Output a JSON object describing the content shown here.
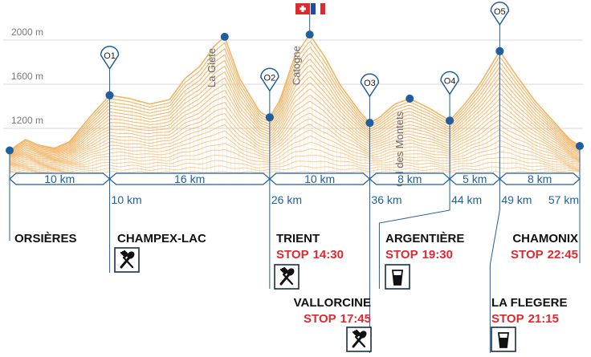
{
  "chart_data": {
    "type": "area",
    "x_unit": "km",
    "y_unit": "m",
    "y_ticks": [
      "1200 m",
      "1600 m",
      "2000 m"
    ],
    "y_tick_values": [
      1200,
      1600,
      2000
    ],
    "ylim": [
      950,
      2200
    ],
    "xlim": [
      0,
      57
    ],
    "grid": true,
    "profile": [
      {
        "x": 0,
        "y": 1000
      },
      {
        "x": 1.6,
        "y": 1100
      },
      {
        "x": 2.8,
        "y": 1050
      },
      {
        "x": 4.5,
        "y": 1020
      },
      {
        "x": 6,
        "y": 1080
      },
      {
        "x": 8,
        "y": 1300
      },
      {
        "x": 10,
        "y": 1500
      },
      {
        "x": 12,
        "y": 1470
      },
      {
        "x": 14,
        "y": 1420
      },
      {
        "x": 16,
        "y": 1460
      },
      {
        "x": 17.5,
        "y": 1650
      },
      {
        "x": 19,
        "y": 1760
      },
      {
        "x": 20.5,
        "y": 1950
      },
      {
        "x": 21.5,
        "y": 2030
      },
      {
        "x": 23,
        "y": 1650
      },
      {
        "x": 25,
        "y": 1350
      },
      {
        "x": 26,
        "y": 1300
      },
      {
        "x": 27,
        "y": 1450
      },
      {
        "x": 28.5,
        "y": 1850
      },
      {
        "x": 30,
        "y": 2050
      },
      {
        "x": 31.5,
        "y": 1850
      },
      {
        "x": 33,
        "y": 1600
      },
      {
        "x": 35,
        "y": 1350
      },
      {
        "x": 36,
        "y": 1250
      },
      {
        "x": 37,
        "y": 1300
      },
      {
        "x": 38.5,
        "y": 1420
      },
      {
        "x": 40,
        "y": 1470
      },
      {
        "x": 42,
        "y": 1380
      },
      {
        "x": 44,
        "y": 1270
      },
      {
        "x": 45.5,
        "y": 1420
      },
      {
        "x": 47,
        "y": 1600
      },
      {
        "x": 49,
        "y": 1900
      },
      {
        "x": 50.5,
        "y": 1700
      },
      {
        "x": 52.5,
        "y": 1450
      },
      {
        "x": 54.5,
        "y": 1250
      },
      {
        "x": 56,
        "y": 1100
      },
      {
        "x": 57,
        "y": 1040
      }
    ],
    "peaks": [
      {
        "name": "La Giète",
        "x": 21.5,
        "y": 2030
      },
      {
        "name": "Catogne",
        "x": 30,
        "y": 2050
      },
      {
        "name": "Col des Montets",
        "x": 40,
        "y": 1470
      }
    ],
    "checkpoints": [
      {
        "id": "O1",
        "x": 10,
        "y": 1500
      },
      {
        "id": "O2",
        "x": 26,
        "y": 1300
      },
      {
        "id": "O3",
        "x": 36,
        "y": 1250
      },
      {
        "id": "O4",
        "x": 44,
        "y": 1270
      },
      {
        "id": "O5",
        "x": 49,
        "y": 1900
      }
    ],
    "segments": [
      {
        "label": "10 km",
        "from": 0,
        "to": 10
      },
      {
        "label": "16 km",
        "from": 10,
        "to": 26
      },
      {
        "label": "10 km",
        "from": 26,
        "to": 36
      },
      {
        "label": "8 km",
        "from": 36,
        "to": 44
      },
      {
        "label": "5 km",
        "from": 44,
        "to": 49
      },
      {
        "label": "8 km",
        "from": 49,
        "to": 57
      }
    ],
    "km_marks": [
      "10 km",
      "26 km",
      "36 km",
      "44 km",
      "49 km",
      "57 km"
    ],
    "km_mark_values": [
      10,
      26,
      36,
      44,
      49,
      57
    ],
    "stations": [
      {
        "name": "ORSIÈRES",
        "km": 0
      },
      {
        "name": "CHAMPEX-LAC",
        "km": 10,
        "icon": "fork-knife-icon"
      },
      {
        "name": "TRIENT",
        "km": 26,
        "stop_label": "STOP",
        "stop_time": "14:30",
        "icon": "fork-knife-icon"
      },
      {
        "name": "VALLORCINE",
        "km": 36,
        "stop_label": "STOP",
        "stop_time": "17:45",
        "icon": "fork-knife-icon"
      },
      {
        "name": "ARGENTIÈRE",
        "km": 44,
        "stop_label": "STOP",
        "stop_time": "19:30",
        "icon": "cup-icon"
      },
      {
        "name": "LA FLEGERE",
        "km": 49,
        "stop_label": "STOP",
        "stop_time": "21:15",
        "icon": "cup-icon"
      },
      {
        "name": "CHAMONIX",
        "km": 57,
        "stop_label": "STOP",
        "stop_time": "22:45"
      }
    ],
    "border_flags": [
      "swiss-flag-icon",
      "french-flag-icon"
    ],
    "colors": {
      "profile": "#f0b466",
      "route": "#1f5fa0",
      "stop": "#e0282e",
      "grid": "#d9d9d9"
    }
  }
}
